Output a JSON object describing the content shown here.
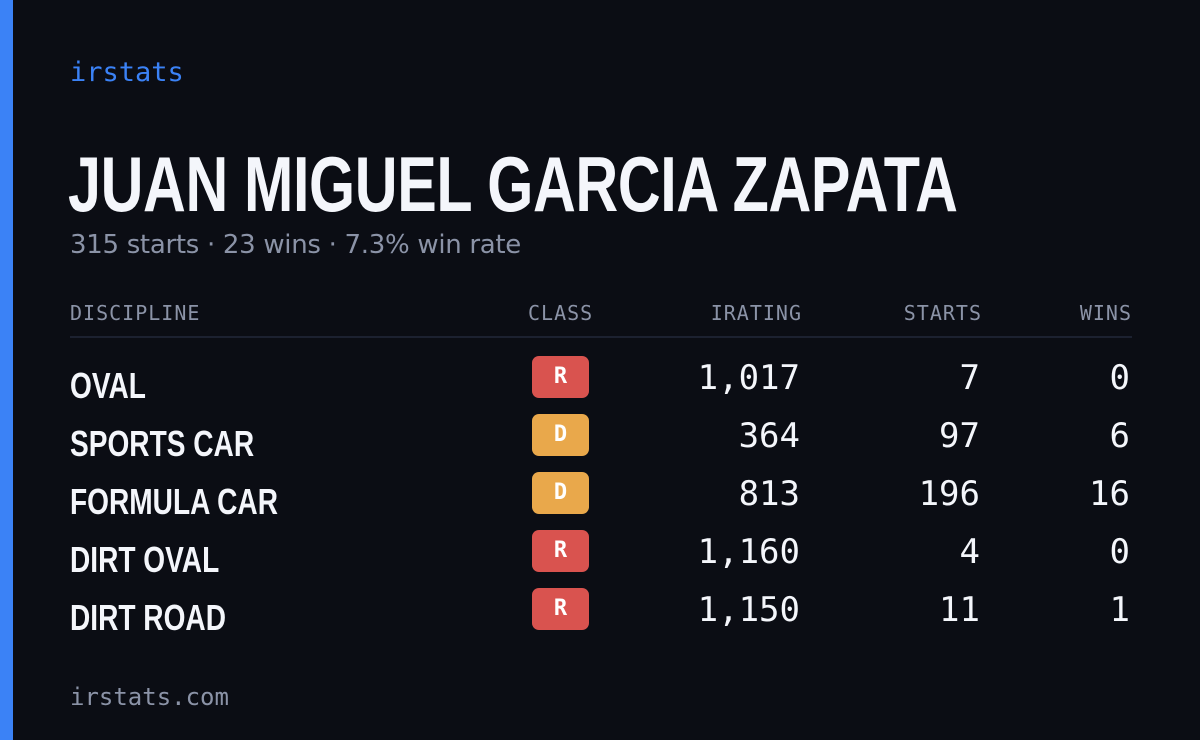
{
  "brand": "irstats",
  "driver": {
    "name": "JUAN MIGUEL GARCIA ZAPATA",
    "summary": "315 starts · 23 wins · 7.3% win rate"
  },
  "table": {
    "headers": {
      "discipline": "DISCIPLINE",
      "class": "CLASS",
      "irating": "IRATING",
      "starts": "STARTS",
      "wins": "WINS"
    },
    "rows": [
      {
        "discipline": "OVAL",
        "class": "R",
        "class_color": "#d9534f",
        "irating": "1,017",
        "starts": "7",
        "wins": "0"
      },
      {
        "discipline": "SPORTS CAR",
        "class": "D",
        "class_color": "#e9a84b",
        "irating": "364",
        "starts": "97",
        "wins": "6"
      },
      {
        "discipline": "FORMULA CAR",
        "class": "D",
        "class_color": "#e9a84b",
        "irating": "813",
        "starts": "196",
        "wins": "16"
      },
      {
        "discipline": "DIRT OVAL",
        "class": "R",
        "class_color": "#d9534f",
        "irating": "1,160",
        "starts": "4",
        "wins": "0"
      },
      {
        "discipline": "DIRT ROAD",
        "class": "R",
        "class_color": "#d9534f",
        "irating": "1,150",
        "starts": "11",
        "wins": "1"
      }
    ]
  },
  "footer": "irstats.com",
  "colors": {
    "background": "#0b0d14",
    "accent": "#3b82f6",
    "text": "#f4f6fb",
    "muted": "#8b93a7"
  }
}
